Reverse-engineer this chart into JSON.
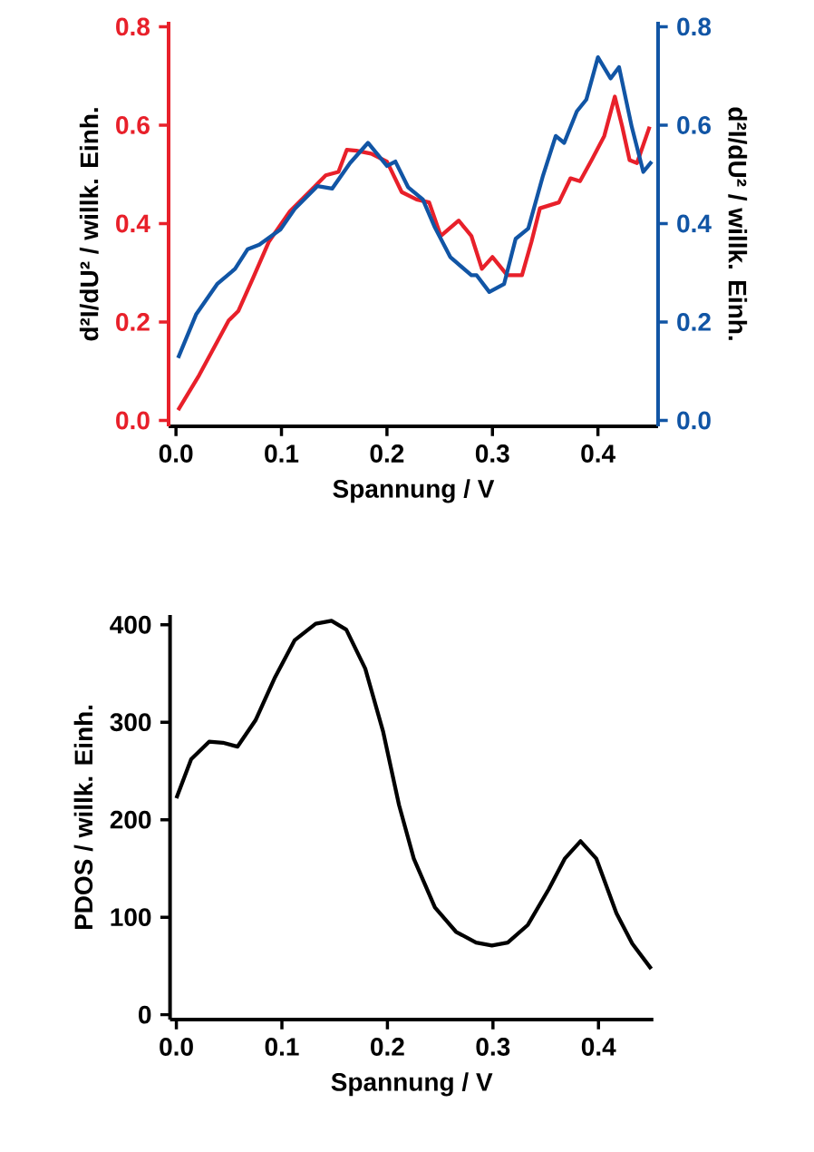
{
  "chart_data": [
    {
      "type": "line",
      "xlabel": "Spannung / V",
      "ylabel": "d²I/dU² / willk. Einh.",
      "y2label": "d²I/dU² / willk. Einh.",
      "xlim": [
        -0.007,
        0.457
      ],
      "ylim": [
        -0.012,
        0.81
      ],
      "y2lim": [
        -0.012,
        0.81
      ],
      "xticks": [
        {
          "value": 0,
          "label": "0.0"
        },
        {
          "value": 0.1,
          "label": "0.1"
        },
        {
          "value": 0.2,
          "label": "0.2"
        },
        {
          "value": 0.3,
          "label": "0.3"
        },
        {
          "value": 0.4,
          "label": "0.4"
        }
      ],
      "yticks": [
        {
          "value": 0,
          "label": "0.0"
        },
        {
          "value": 0.2,
          "label": "0.2"
        },
        {
          "value": 0.4,
          "label": "0.4"
        },
        {
          "value": 0.6,
          "label": "0.6"
        },
        {
          "value": 0.8,
          "label": "0.8"
        }
      ],
      "y2ticks": [
        {
          "value": 0,
          "label": "0.0"
        },
        {
          "value": 0.2,
          "label": "0.2"
        },
        {
          "value": 0.4,
          "label": "0.4"
        },
        {
          "value": 0.6,
          "label": "0.6"
        },
        {
          "value": 0.8,
          "label": "0.8"
        }
      ],
      "series": [
        {
          "color": "#e8202a",
          "x": [
            0.002,
            0.022,
            0.05,
            0.059,
            0.073,
            0.088,
            0.108,
            0.131,
            0.142,
            0.154,
            0.162,
            0.171,
            0.185,
            0.2,
            0.214,
            0.228,
            0.24,
            0.251,
            0.268,
            0.28,
            0.29,
            0.3,
            0.314,
            0.328,
            0.337,
            0.345,
            0.363,
            0.374,
            0.383,
            0.394,
            0.406,
            0.416,
            0.423,
            0.43,
            0.437,
            0.449
          ],
          "values": [
            0.021,
            0.092,
            0.203,
            0.222,
            0.289,
            0.363,
            0.425,
            0.474,
            0.498,
            0.505,
            0.55,
            0.548,
            0.542,
            0.526,
            0.464,
            0.449,
            0.443,
            0.375,
            0.406,
            0.375,
            0.308,
            0.332,
            0.295,
            0.295,
            0.363,
            0.431,
            0.443,
            0.492,
            0.486,
            0.529,
            0.578,
            0.658,
            0.597,
            0.529,
            0.523,
            0.597
          ]
        },
        {
          "color": "#1155a5",
          "axis": "y2",
          "x": [
            0.002,
            0.019,
            0.039,
            0.056,
            0.068,
            0.079,
            0.099,
            0.113,
            0.134,
            0.148,
            0.165,
            0.182,
            0.2,
            0.208,
            0.22,
            0.234,
            0.245,
            0.26,
            0.28,
            0.285,
            0.297,
            0.311,
            0.322,
            0.334,
            0.348,
            0.36,
            0.368,
            0.38,
            0.389,
            0.4,
            0.412,
            0.42,
            0.432,
            0.443,
            0.451
          ],
          "values": [
            0.127,
            0.215,
            0.277,
            0.308,
            0.348,
            0.357,
            0.388,
            0.431,
            0.476,
            0.471,
            0.523,
            0.564,
            0.517,
            0.526,
            0.474,
            0.449,
            0.394,
            0.332,
            0.295,
            0.295,
            0.261,
            0.277,
            0.369,
            0.39,
            0.498,
            0.578,
            0.564,
            0.628,
            0.652,
            0.738,
            0.695,
            0.718,
            0.597,
            0.505,
            0.526
          ]
        }
      ]
    },
    {
      "type": "line",
      "xlabel": "Spannung / V",
      "ylabel": "PDOS / willk. Einh.",
      "xlim": [
        -0.006,
        0.452
      ],
      "ylim": [
        -5,
        410
      ],
      "xticks": [
        {
          "value": 0,
          "label": "0.0"
        },
        {
          "value": 0.1,
          "label": "0.1"
        },
        {
          "value": 0.2,
          "label": "0.2"
        },
        {
          "value": 0.3,
          "label": "0.3"
        },
        {
          "value": 0.4,
          "label": "0.4"
        }
      ],
      "yticks": [
        0,
        100,
        200,
        300,
        400
      ],
      "series": [
        {
          "color": "#000000",
          "x": [
            0,
            0.014,
            0.031,
            0.044,
            0.058,
            0.075,
            0.093,
            0.112,
            0.132,
            0.147,
            0.161,
            0.179,
            0.196,
            0.211,
            0.225,
            0.245,
            0.265,
            0.284,
            0.299,
            0.314,
            0.333,
            0.353,
            0.368,
            0.383,
            0.398,
            0.417,
            0.432,
            0.45
          ],
          "values": [
            222,
            262,
            280,
            279,
            275,
            302,
            345,
            384,
            401,
            404,
            395,
            355,
            290,
            215,
            160,
            110,
            85,
            74,
            71,
            74,
            92,
            129,
            160,
            178,
            160,
            104,
            73,
            47
          ]
        }
      ]
    }
  ]
}
